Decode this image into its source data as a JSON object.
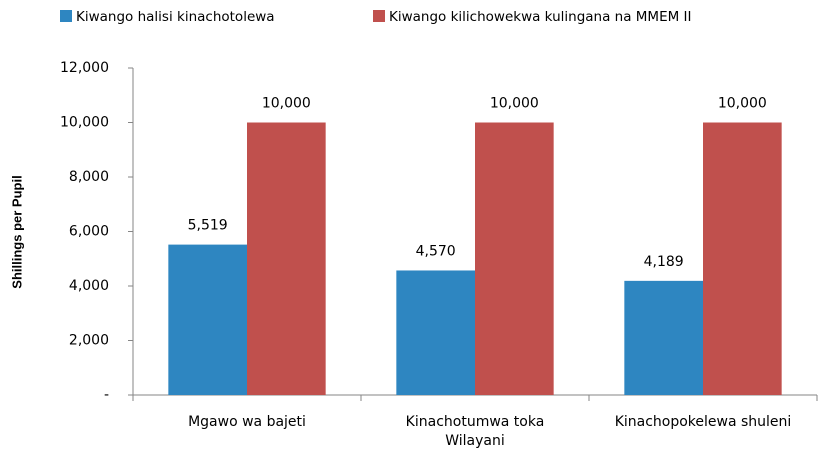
{
  "chart_data": {
    "type": "bar",
    "y_label": "Shillings per Pupil",
    "categories": [
      "Mgawo wa bajeti",
      "Kinachotumwa toka Wilayani",
      "Kinachopokelewa shuleni"
    ],
    "series": [
      {
        "name": "Kiwango halisi kinachotolewa",
        "color": "#2e86c1",
        "values": [
          5519,
          4570,
          4189
        ],
        "value_labels": [
          "5,519",
          "4,570",
          "4,189"
        ]
      },
      {
        "name": "Kiwango kilichowekwa kulingana na MMEM II",
        "color": "#c0504d",
        "values": [
          10000,
          10000,
          10000
        ],
        "value_labels": [
          "10,000",
          "10,000",
          "10,000"
        ]
      }
    ],
    "ylim": [
      0,
      12000
    ],
    "yticks": [
      {
        "value": 0,
        "label": "-"
      },
      {
        "value": 2000,
        "label": "2,000"
      },
      {
        "value": 4000,
        "label": "4,000"
      },
      {
        "value": 6000,
        "label": "6,000"
      },
      {
        "value": 8000,
        "label": "8,000"
      },
      {
        "value": 10000,
        "label": "10,000"
      },
      {
        "value": 12000,
        "label": "12,000"
      }
    ],
    "legend": "top"
  }
}
